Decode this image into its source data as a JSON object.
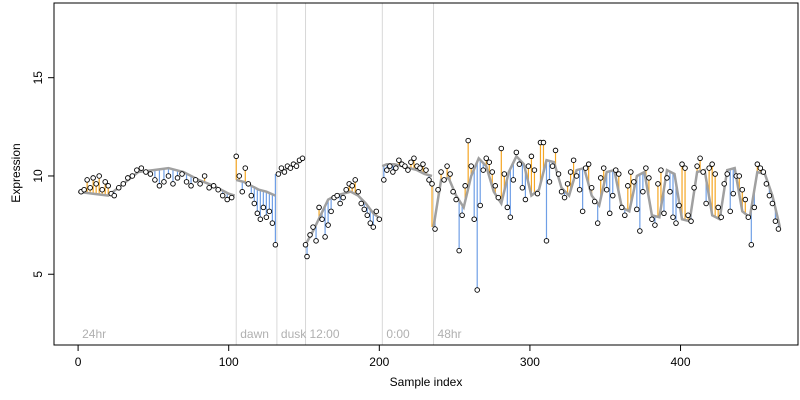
{
  "chart_data": {
    "type": "scatter",
    "title": "",
    "xlabel": "Sample index",
    "ylabel": "Expression",
    "xlim": [
      -16,
      478
    ],
    "ylim": [
      1.4,
      18.8
    ],
    "xticks": [
      0,
      100,
      200,
      300,
      400
    ],
    "yticks": [
      5,
      10,
      15
    ],
    "grid": false,
    "colors": {
      "point_fill": "#ffffff",
      "point_stroke": "#000000",
      "fit_line": "#a0a0a0",
      "residual_above": "#f5a623",
      "residual_below": "#6f9fe6",
      "annotation_line": "#d8d8d8",
      "annotation_text": "#b0b0b0"
    },
    "annotations": [
      {
        "x": 0,
        "label": "24hr",
        "line": false
      },
      {
        "x": 105,
        "label": "dawn",
        "line": true
      },
      {
        "x": 132,
        "label": "dusk",
        "line": true
      },
      {
        "x": 151,
        "label": "12:00",
        "line": true
      },
      {
        "x": 202,
        "label": "0:00",
        "line": true
      },
      {
        "x": 236,
        "label": "48hr",
        "line": true
      }
    ],
    "segments": [
      {
        "name": "24hr",
        "x": [
          0,
          10,
          20,
          30,
          40,
          50,
          60,
          70,
          80,
          90,
          100,
          104
        ],
        "fit": [
          9.2,
          9.1,
          9.0,
          9.6,
          10.2,
          10.3,
          10.4,
          10.2,
          9.8,
          9.5,
          9.1,
          9.0
        ]
      },
      {
        "name": "dawn",
        "x": [
          105,
          110,
          115,
          120,
          125,
          131
        ],
        "fit": [
          9.8,
          9.7,
          9.5,
          9.3,
          9.2,
          9.0
        ]
      },
      {
        "name": "dusk",
        "x": [
          132,
          137,
          142,
          147,
          150
        ],
        "fit": [
          10.1,
          10.3,
          10.5,
          10.7,
          10.9
        ]
      },
      {
        "name": "12:00",
        "x": [
          151,
          156,
          161,
          166,
          171,
          176,
          181,
          186,
          191,
          196,
          201
        ],
        "fit": [
          6.5,
          7.2,
          8.0,
          8.8,
          9.0,
          9.1,
          9.2,
          9.0,
          8.6,
          8.1,
          7.8
        ]
      },
      {
        "name": "0:00",
        "x": [
          202,
          205,
          210,
          215,
          220,
          225,
          230,
          235
        ],
        "fit": [
          10.5,
          10.6,
          10.6,
          10.5,
          10.4,
          10.3,
          10.1,
          10.0
        ]
      },
      {
        "name": "48hr",
        "x": [
          236,
          241,
          246,
          251,
          256,
          261,
          266,
          271,
          276,
          281,
          286,
          291,
          296,
          301,
          306,
          311,
          316,
          321,
          326,
          331,
          336,
          341,
          346,
          351,
          356,
          361,
          366,
          371,
          376,
          381,
          386,
          391,
          396,
          401,
          406,
          411,
          416,
          421,
          426,
          431,
          436,
          441,
          446,
          451,
          456,
          461,
          466
        ],
        "fit": [
          7.4,
          9.8,
          9.9,
          9.0,
          8.4,
          10.0,
          10.9,
          10.5,
          9.2,
          8.6,
          10.2,
          11.0,
          10.6,
          9.0,
          9.3,
          10.8,
          10.7,
          9.4,
          9.0,
          10.3,
          10.4,
          9.0,
          8.5,
          10.2,
          10.3,
          8.4,
          8.2,
          10.0,
          10.2,
          8.0,
          7.9,
          10.3,
          10.1,
          7.8,
          7.7,
          10.2,
          10.3,
          8.0,
          7.8,
          10.3,
          10.4,
          8.2,
          7.9,
          10.2,
          10.1,
          9.0,
          7.4
        ]
      }
    ],
    "points": [
      {
        "x": 2,
        "y": 9.2
      },
      {
        "x": 4,
        "y": 9.3
      },
      {
        "x": 6,
        "y": 9.8
      },
      {
        "x": 8,
        "y": 9.4
      },
      {
        "x": 10,
        "y": 9.9
      },
      {
        "x": 12,
        "y": 9.6
      },
      {
        "x": 14,
        "y": 10.0
      },
      {
        "x": 16,
        "y": 9.3
      },
      {
        "x": 18,
        "y": 9.7
      },
      {
        "x": 20,
        "y": 9.5
      },
      {
        "x": 22,
        "y": 9.1
      },
      {
        "x": 24,
        "y": 9.0
      },
      {
        "x": 27,
        "y": 9.4
      },
      {
        "x": 30,
        "y": 9.6
      },
      {
        "x": 33,
        "y": 9.9
      },
      {
        "x": 36,
        "y": 10.0
      },
      {
        "x": 39,
        "y": 10.3
      },
      {
        "x": 42,
        "y": 10.4
      },
      {
        "x": 45,
        "y": 10.2
      },
      {
        "x": 48,
        "y": 10.1
      },
      {
        "x": 51,
        "y": 9.8
      },
      {
        "x": 54,
        "y": 9.5
      },
      {
        "x": 57,
        "y": 9.7
      },
      {
        "x": 60,
        "y": 10.0
      },
      {
        "x": 63,
        "y": 9.6
      },
      {
        "x": 66,
        "y": 9.9
      },
      {
        "x": 69,
        "y": 10.1
      },
      {
        "x": 72,
        "y": 9.7
      },
      {
        "x": 75,
        "y": 9.5
      },
      {
        "x": 78,
        "y": 9.8
      },
      {
        "x": 81,
        "y": 9.6
      },
      {
        "x": 84,
        "y": 10.0
      },
      {
        "x": 87,
        "y": 9.4
      },
      {
        "x": 90,
        "y": 9.5
      },
      {
        "x": 93,
        "y": 9.3
      },
      {
        "x": 96,
        "y": 9.0
      },
      {
        "x": 99,
        "y": 8.8
      },
      {
        "x": 102,
        "y": 8.9
      },
      {
        "x": 105,
        "y": 11.0
      },
      {
        "x": 107,
        "y": 10.0
      },
      {
        "x": 109,
        "y": 9.2
      },
      {
        "x": 111,
        "y": 10.4
      },
      {
        "x": 113,
        "y": 9.6
      },
      {
        "x": 115,
        "y": 9.0
      },
      {
        "x": 117,
        "y": 8.6
      },
      {
        "x": 119,
        "y": 8.1
      },
      {
        "x": 121,
        "y": 7.8
      },
      {
        "x": 123,
        "y": 8.4
      },
      {
        "x": 125,
        "y": 7.9
      },
      {
        "x": 127,
        "y": 8.2
      },
      {
        "x": 129,
        "y": 7.6
      },
      {
        "x": 131,
        "y": 6.5
      },
      {
        "x": 133,
        "y": 10.1
      },
      {
        "x": 135,
        "y": 10.4
      },
      {
        "x": 137,
        "y": 10.2
      },
      {
        "x": 139,
        "y": 10.5
      },
      {
        "x": 141,
        "y": 10.4
      },
      {
        "x": 143,
        "y": 10.6
      },
      {
        "x": 145,
        "y": 10.5
      },
      {
        "x": 147,
        "y": 10.8
      },
      {
        "x": 149,
        "y": 10.9
      },
      {
        "x": 151,
        "y": 6.5
      },
      {
        "x": 152,
        "y": 5.9
      },
      {
        "x": 154,
        "y": 7.0
      },
      {
        "x": 156,
        "y": 7.4
      },
      {
        "x": 158,
        "y": 6.7
      },
      {
        "x": 160,
        "y": 8.4
      },
      {
        "x": 162,
        "y": 7.8
      },
      {
        "x": 164,
        "y": 6.9
      },
      {
        "x": 166,
        "y": 7.5
      },
      {
        "x": 168,
        "y": 8.2
      },
      {
        "x": 170,
        "y": 8.9
      },
      {
        "x": 172,
        "y": 9.0
      },
      {
        "x": 174,
        "y": 8.6
      },
      {
        "x": 176,
        "y": 8.9
      },
      {
        "x": 178,
        "y": 9.3
      },
      {
        "x": 180,
        "y": 9.6
      },
      {
        "x": 182,
        "y": 9.5
      },
      {
        "x": 184,
        "y": 9.8
      },
      {
        "x": 186,
        "y": 9.2
      },
      {
        "x": 188,
        "y": 8.6
      },
      {
        "x": 190,
        "y": 8.3
      },
      {
        "x": 192,
        "y": 8.0
      },
      {
        "x": 194,
        "y": 7.6
      },
      {
        "x": 196,
        "y": 7.4
      },
      {
        "x": 198,
        "y": 8.2
      },
      {
        "x": 200,
        "y": 7.8
      },
      {
        "x": 203,
        "y": 9.8
      },
      {
        "x": 205,
        "y": 10.3
      },
      {
        "x": 207,
        "y": 10.5
      },
      {
        "x": 209,
        "y": 10.2
      },
      {
        "x": 211,
        "y": 10.4
      },
      {
        "x": 213,
        "y": 10.8
      },
      {
        "x": 215,
        "y": 10.6
      },
      {
        "x": 217,
        "y": 10.5
      },
      {
        "x": 219,
        "y": 10.3
      },
      {
        "x": 221,
        "y": 10.7
      },
      {
        "x": 223,
        "y": 10.9
      },
      {
        "x": 225,
        "y": 10.5
      },
      {
        "x": 227,
        "y": 10.4
      },
      {
        "x": 229,
        "y": 10.6
      },
      {
        "x": 231,
        "y": 10.3
      },
      {
        "x": 233,
        "y": 9.8
      },
      {
        "x": 235,
        "y": 9.6
      },
      {
        "x": 237,
        "y": 7.3
      },
      {
        "x": 239,
        "y": 9.3
      },
      {
        "x": 241,
        "y": 10.2
      },
      {
        "x": 243,
        "y": 9.8
      },
      {
        "x": 245,
        "y": 10.5
      },
      {
        "x": 247,
        "y": 10.1
      },
      {
        "x": 249,
        "y": 9.2
      },
      {
        "x": 251,
        "y": 8.8
      },
      {
        "x": 253,
        "y": 6.2
      },
      {
        "x": 255,
        "y": 8.0
      },
      {
        "x": 257,
        "y": 9.5
      },
      {
        "x": 259,
        "y": 11.8
      },
      {
        "x": 261,
        "y": 10.5
      },
      {
        "x": 263,
        "y": 7.8
      },
      {
        "x": 265,
        "y": 4.2
      },
      {
        "x": 267,
        "y": 8.5
      },
      {
        "x": 269,
        "y": 10.3
      },
      {
        "x": 271,
        "y": 10.9
      },
      {
        "x": 273,
        "y": 10.7
      },
      {
        "x": 275,
        "y": 10.2
      },
      {
        "x": 277,
        "y": 9.5
      },
      {
        "x": 279,
        "y": 8.9
      },
      {
        "x": 281,
        "y": 11.4
      },
      {
        "x": 283,
        "y": 10.1
      },
      {
        "x": 285,
        "y": 8.4
      },
      {
        "x": 287,
        "y": 7.9
      },
      {
        "x": 289,
        "y": 9.8
      },
      {
        "x": 291,
        "y": 11.2
      },
      {
        "x": 293,
        "y": 10.6
      },
      {
        "x": 295,
        "y": 9.4
      },
      {
        "x": 297,
        "y": 8.8
      },
      {
        "x": 299,
        "y": 10.5
      },
      {
        "x": 301,
        "y": 11.0
      },
      {
        "x": 303,
        "y": 10.3
      },
      {
        "x": 305,
        "y": 9.1
      },
      {
        "x": 307,
        "y": 11.7
      },
      {
        "x": 309,
        "y": 11.7
      },
      {
        "x": 311,
        "y": 6.7
      },
      {
        "x": 313,
        "y": 9.7
      },
      {
        "x": 315,
        "y": 10.5
      },
      {
        "x": 317,
        "y": 11.3
      },
      {
        "x": 319,
        "y": 10.1
      },
      {
        "x": 321,
        "y": 9.2
      },
      {
        "x": 323,
        "y": 8.9
      },
      {
        "x": 325,
        "y": 9.6
      },
      {
        "x": 327,
        "y": 10.2
      },
      {
        "x": 329,
        "y": 10.8
      },
      {
        "x": 331,
        "y": 10.0
      },
      {
        "x": 333,
        "y": 9.3
      },
      {
        "x": 335,
        "y": 8.2
      },
      {
        "x": 337,
        "y": 10.4
      },
      {
        "x": 339,
        "y": 10.6
      },
      {
        "x": 341,
        "y": 9.4
      },
      {
        "x": 343,
        "y": 8.7
      },
      {
        "x": 345,
        "y": 7.6
      },
      {
        "x": 347,
        "y": 9.9
      },
      {
        "x": 349,
        "y": 10.4
      },
      {
        "x": 351,
        "y": 9.3
      },
      {
        "x": 353,
        "y": 8.1
      },
      {
        "x": 355,
        "y": 9.0
      },
      {
        "x": 357,
        "y": 10.3
      },
      {
        "x": 359,
        "y": 10.1
      },
      {
        "x": 361,
        "y": 8.4
      },
      {
        "x": 363,
        "y": 8.0
      },
      {
        "x": 365,
        "y": 9.5
      },
      {
        "x": 367,
        "y": 10.2
      },
      {
        "x": 369,
        "y": 9.7
      },
      {
        "x": 371,
        "y": 8.3
      },
      {
        "x": 373,
        "y": 7.2
      },
      {
        "x": 375,
        "y": 9.2
      },
      {
        "x": 377,
        "y": 10.4
      },
      {
        "x": 379,
        "y": 9.9
      },
      {
        "x": 381,
        "y": 7.8
      },
      {
        "x": 383,
        "y": 7.5
      },
      {
        "x": 385,
        "y": 9.6
      },
      {
        "x": 387,
        "y": 10.3
      },
      {
        "x": 389,
        "y": 8.1
      },
      {
        "x": 391,
        "y": 9.9
      },
      {
        "x": 393,
        "y": 9.2
      },
      {
        "x": 395,
        "y": 7.9
      },
      {
        "x": 397,
        "y": 7.6
      },
      {
        "x": 399,
        "y": 8.5
      },
      {
        "x": 401,
        "y": 10.6
      },
      {
        "x": 403,
        "y": 10.4
      },
      {
        "x": 405,
        "y": 8.0
      },
      {
        "x": 407,
        "y": 7.7
      },
      {
        "x": 409,
        "y": 9.4
      },
      {
        "x": 411,
        "y": 10.5
      },
      {
        "x": 413,
        "y": 10.9
      },
      {
        "x": 415,
        "y": 10.2
      },
      {
        "x": 417,
        "y": 8.6
      },
      {
        "x": 419,
        "y": 10.4
      },
      {
        "x": 421,
        "y": 10.6
      },
      {
        "x": 423,
        "y": 10.1
      },
      {
        "x": 425,
        "y": 8.4
      },
      {
        "x": 427,
        "y": 7.9
      },
      {
        "x": 429,
        "y": 9.6
      },
      {
        "x": 431,
        "y": 10.1
      },
      {
        "x": 433,
        "y": 8.2
      },
      {
        "x": 435,
        "y": 9.1
      },
      {
        "x": 437,
        "y": 10.0
      },
      {
        "x": 439,
        "y": 10.0
      },
      {
        "x": 441,
        "y": 9.3
      },
      {
        "x": 443,
        "y": 8.8
      },
      {
        "x": 445,
        "y": 7.9
      },
      {
        "x": 447,
        "y": 6.5
      },
      {
        "x": 449,
        "y": 8.4
      },
      {
        "x": 451,
        "y": 10.6
      },
      {
        "x": 453,
        "y": 10.4
      },
      {
        "x": 455,
        "y": 10.2
      },
      {
        "x": 457,
        "y": 9.6
      },
      {
        "x": 459,
        "y": 9.0
      },
      {
        "x": 461,
        "y": 8.6
      },
      {
        "x": 463,
        "y": 7.7
      },
      {
        "x": 465,
        "y": 7.3
      }
    ]
  }
}
